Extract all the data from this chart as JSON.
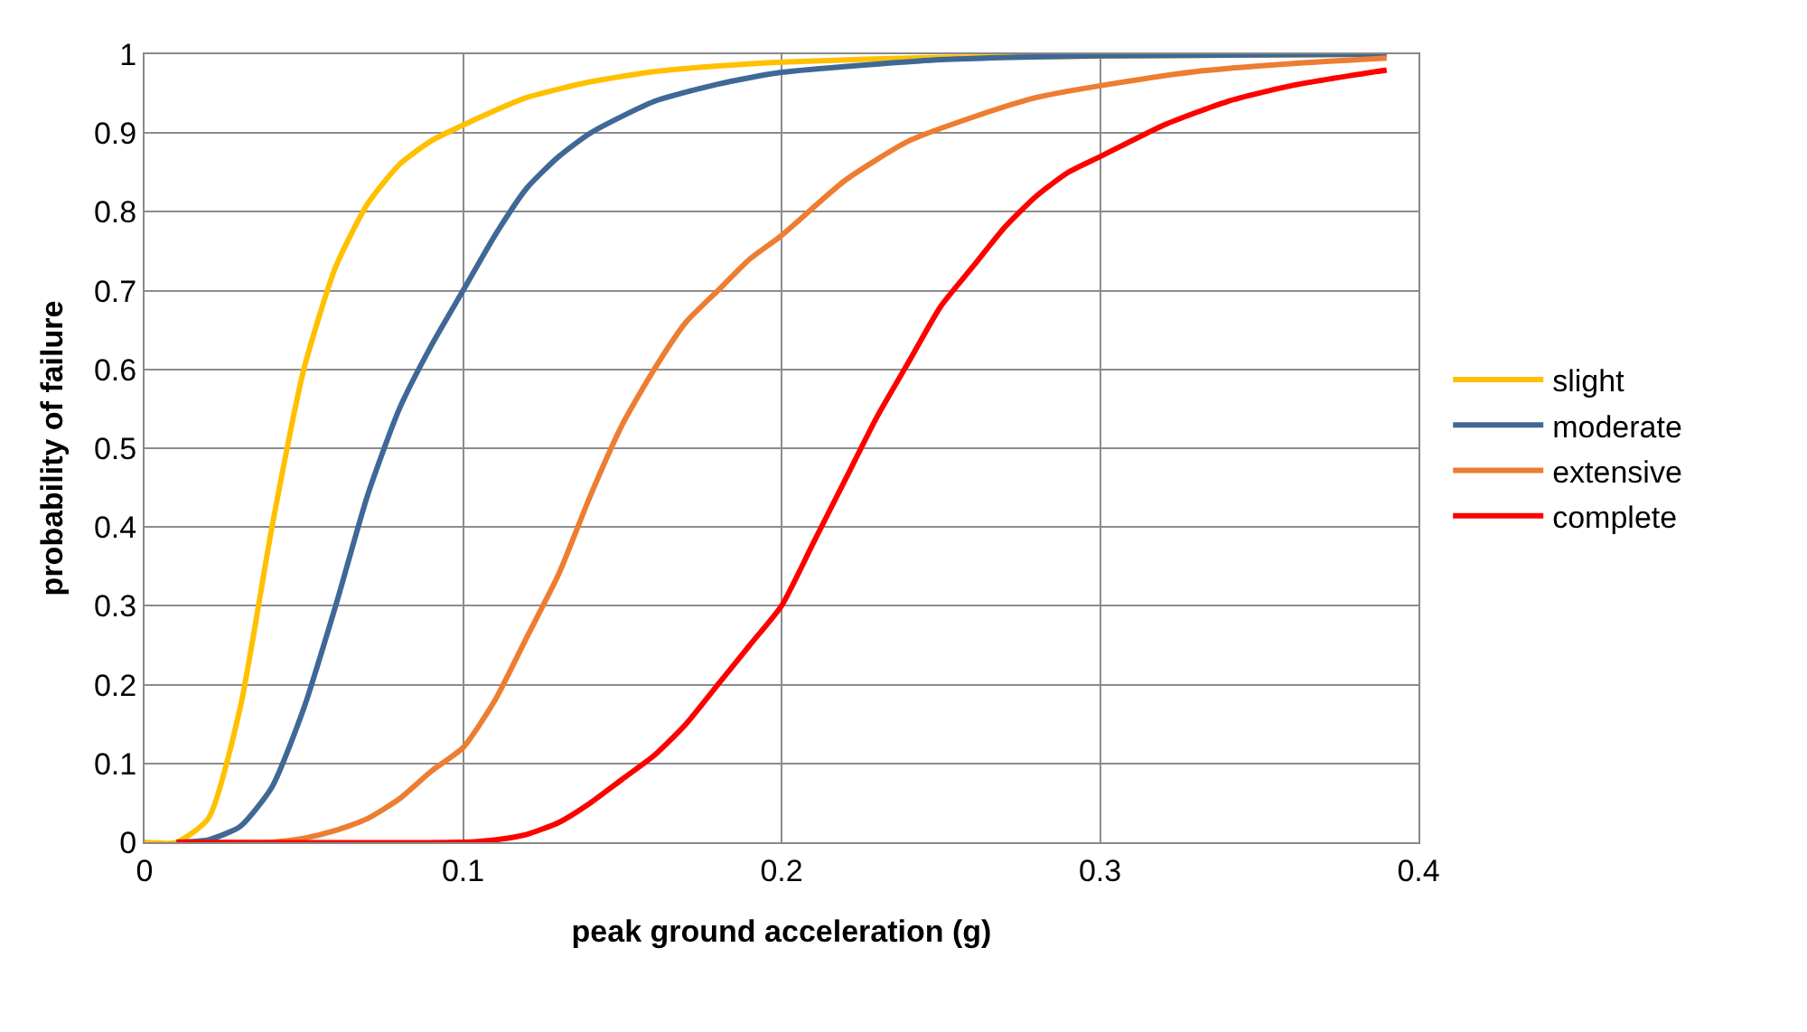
{
  "chart_data": {
    "type": "line",
    "xlabel": "peak ground acceleration (g)",
    "ylabel": "probability of failure",
    "xlim": [
      0,
      0.4
    ],
    "xticks": [
      0,
      0.1,
      0.2,
      0.3,
      0.4
    ],
    "ylim": [
      0,
      1
    ],
    "yticks": [
      0,
      0.1,
      0.2,
      0.3,
      0.4,
      0.5,
      0.6,
      0.7,
      0.8,
      0.9,
      1
    ],
    "grid": true,
    "legend": "right",
    "marker": "none",
    "line_style": "solid",
    "series": [
      {
        "name": "slight",
        "color": "#ffc000",
        "x": [
          0,
          0.01,
          0.02,
          0.03,
          0.04,
          0.05,
          0.06,
          0.07,
          0.08,
          0.09,
          0.1,
          0.12,
          0.14,
          0.16,
          0.18,
          0.2,
          0.25,
          0.39
        ],
        "values": [
          0,
          0,
          0.03,
          0.17,
          0.4,
          0.6,
          0.73,
          0.81,
          0.86,
          0.89,
          0.91,
          0.945,
          0.965,
          0.978,
          0.985,
          0.99,
          0.996,
          1
        ]
      },
      {
        "name": "moderate",
        "color": "#3f6896",
        "x": [
          0.01,
          0.02,
          0.03,
          0.04,
          0.05,
          0.06,
          0.07,
          0.08,
          0.09,
          0.1,
          0.11,
          0.12,
          0.13,
          0.14,
          0.16,
          0.18,
          0.2,
          0.25,
          0.3,
          0.39
        ],
        "values": [
          0,
          0.003,
          0.02,
          0.07,
          0.17,
          0.3,
          0.44,
          0.55,
          0.63,
          0.7,
          0.77,
          0.83,
          0.87,
          0.9,
          0.94,
          0.962,
          0.977,
          0.993,
          0.998,
          1
        ]
      },
      {
        "name": "extensive",
        "color": "#ed7d31",
        "x": [
          0.01,
          0.04,
          0.05,
          0.06,
          0.07,
          0.08,
          0.09,
          0.1,
          0.11,
          0.12,
          0.13,
          0.14,
          0.15,
          0.16,
          0.17,
          0.18,
          0.19,
          0.2,
          0.22,
          0.24,
          0.26,
          0.28,
          0.3,
          0.33,
          0.36,
          0.39
        ],
        "values": [
          0,
          0,
          0.005,
          0.015,
          0.03,
          0.055,
          0.09,
          0.12,
          0.18,
          0.26,
          0.34,
          0.44,
          0.53,
          0.6,
          0.66,
          0.7,
          0.74,
          0.77,
          0.84,
          0.89,
          0.92,
          0.945,
          0.96,
          0.978,
          0.988,
          0.995
        ]
      },
      {
        "name": "complete",
        "color": "#ff0000",
        "x": [
          0.01,
          0.1,
          0.11,
          0.12,
          0.13,
          0.14,
          0.15,
          0.16,
          0.17,
          0.18,
          0.19,
          0.2,
          0.21,
          0.22,
          0.23,
          0.24,
          0.25,
          0.26,
          0.27,
          0.28,
          0.29,
          0.3,
          0.32,
          0.34,
          0.36,
          0.39
        ],
        "values": [
          0,
          0,
          0.003,
          0.01,
          0.025,
          0.05,
          0.08,
          0.11,
          0.15,
          0.2,
          0.25,
          0.3,
          0.38,
          0.46,
          0.54,
          0.61,
          0.68,
          0.73,
          0.78,
          0.82,
          0.85,
          0.87,
          0.91,
          0.94,
          0.96,
          0.98
        ]
      }
    ]
  }
}
